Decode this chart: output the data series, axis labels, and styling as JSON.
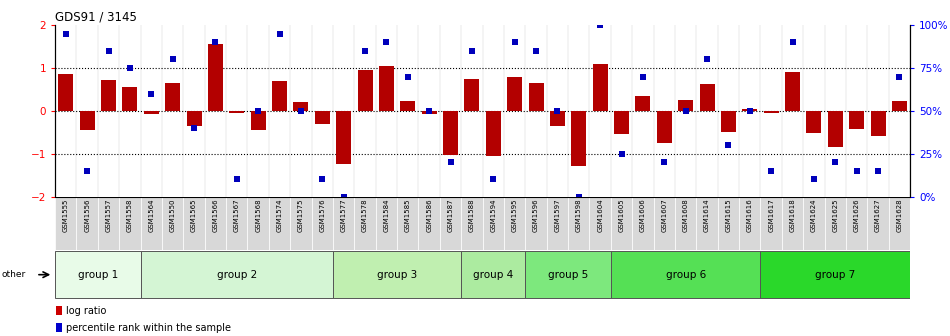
{
  "title": "GDS91 / 3145",
  "samples": [
    "GSM1555",
    "GSM1556",
    "GSM1557",
    "GSM1558",
    "GSM1564",
    "GSM1550",
    "GSM1565",
    "GSM1566",
    "GSM1567",
    "GSM1568",
    "GSM1574",
    "GSM1575",
    "GSM1576",
    "GSM1577",
    "GSM1578",
    "GSM1584",
    "GSM1585",
    "GSM1586",
    "GSM1587",
    "GSM1588",
    "GSM1594",
    "GSM1595",
    "GSM1596",
    "GSM1597",
    "GSM1598",
    "GSM1604",
    "GSM1605",
    "GSM1606",
    "GSM1607",
    "GSM1608",
    "GSM1614",
    "GSM1615",
    "GSM1616",
    "GSM1617",
    "GSM1618",
    "GSM1624",
    "GSM1625",
    "GSM1626",
    "GSM1627",
    "GSM1628"
  ],
  "log_ratio": [
    0.85,
    -0.45,
    0.72,
    0.55,
    -0.08,
    0.65,
    -0.35,
    1.55,
    -0.05,
    -0.45,
    0.7,
    0.2,
    -0.3,
    -1.25,
    0.95,
    1.05,
    0.22,
    -0.08,
    -1.03,
    0.75,
    -1.05,
    0.78,
    0.65,
    -0.35,
    -1.28,
    1.1,
    -0.55,
    0.35,
    -0.75,
    0.25,
    0.62,
    -0.5,
    0.05,
    -0.05,
    0.9,
    -0.52,
    -0.85,
    -0.42,
    -0.58,
    0.22
  ],
  "percentile": [
    95,
    15,
    85,
    75,
    60,
    80,
    40,
    90,
    10,
    50,
    95,
    50,
    10,
    0,
    85,
    90,
    70,
    50,
    20,
    85,
    10,
    90,
    85,
    50,
    0,
    100,
    25,
    70,
    20,
    50,
    80,
    30,
    50,
    15,
    90,
    10,
    20,
    15,
    15,
    70
  ],
  "group_names": [
    "group 1",
    "group 2",
    "group 3",
    "group 4",
    "group 5",
    "group 6",
    "group 7"
  ],
  "group_ranges": [
    [
      0,
      4
    ],
    [
      4,
      13
    ],
    [
      13,
      19
    ],
    [
      19,
      22
    ],
    [
      22,
      26
    ],
    [
      26,
      33
    ],
    [
      33,
      40
    ]
  ],
  "group_colors": [
    "#e8fbe8",
    "#d4f5d4",
    "#c0efb0",
    "#aceba0",
    "#7de87d",
    "#55e055",
    "#2ad82a"
  ],
  "bar_color": "#b30000",
  "dot_color": "#0000bb",
  "yticks_left": [
    -2,
    -1,
    0,
    1,
    2
  ],
  "yticks_right": [
    0,
    25,
    50,
    75,
    100
  ],
  "cell_bg": "#d8d8d8",
  "legend_bar_color": "#cc0000",
  "legend_dot_color": "#0000cc"
}
